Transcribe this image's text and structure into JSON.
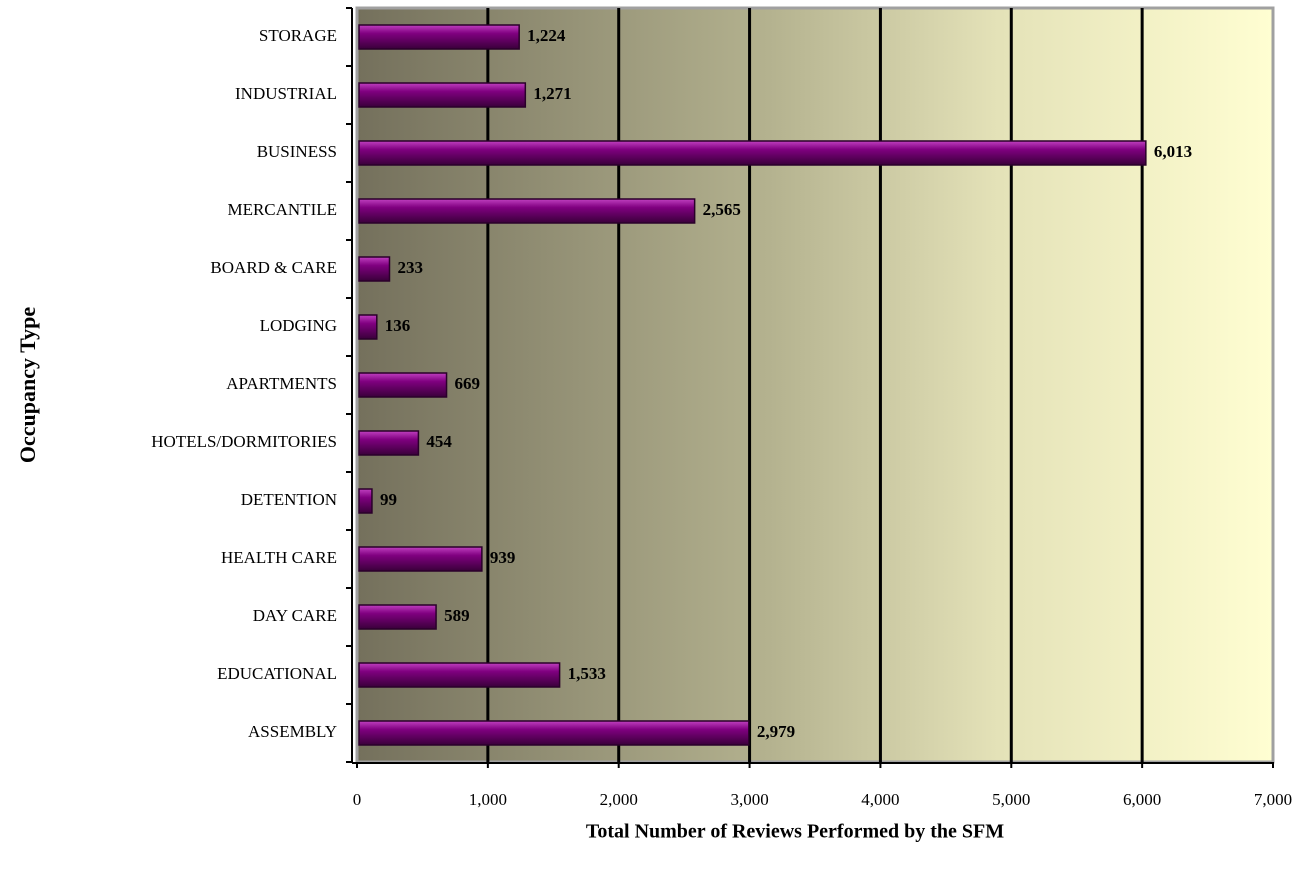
{
  "chart_data": {
    "type": "barh",
    "xlabel": "Total Number of Reviews Performed by the SFM",
    "ylabel": "Occupancy Type",
    "categories": [
      "STORAGE",
      "INDUSTRIAL",
      "BUSINESS",
      "MERCANTILE",
      "BOARD & CARE",
      "LODGING",
      "APARTMENTS",
      "HOTELS/DORMITORIES",
      "DETENTION",
      "HEALTH CARE",
      "DAY CARE",
      "EDUCATIONAL",
      "ASSEMBLY"
    ],
    "values": [
      1224,
      1271,
      6013,
      2565,
      233,
      136,
      669,
      454,
      99,
      939,
      589,
      1533,
      2979
    ],
    "value_labels": [
      "1,224",
      "1,271",
      "6,013",
      "2,565",
      "233",
      "136",
      "669",
      "454",
      "99",
      "939",
      "589",
      "1,533",
      "2,979"
    ],
    "color": "#800080",
    "xlim": [
      0,
      7000
    ],
    "xticks": [
      0,
      {
        "value": 1000,
        "label": "1,000"
      },
      {
        "value": 2000,
        "label": "2,000"
      },
      {
        "value": 3000,
        "label": "3,000"
      },
      {
        "value": 4000,
        "label": "4,000"
      },
      {
        "value": 5000,
        "label": "5,000"
      },
      {
        "value": 6000,
        "label": "6,000"
      },
      {
        "value": 7000,
        "label": "7,000"
      }
    ],
    "grid": true
  }
}
